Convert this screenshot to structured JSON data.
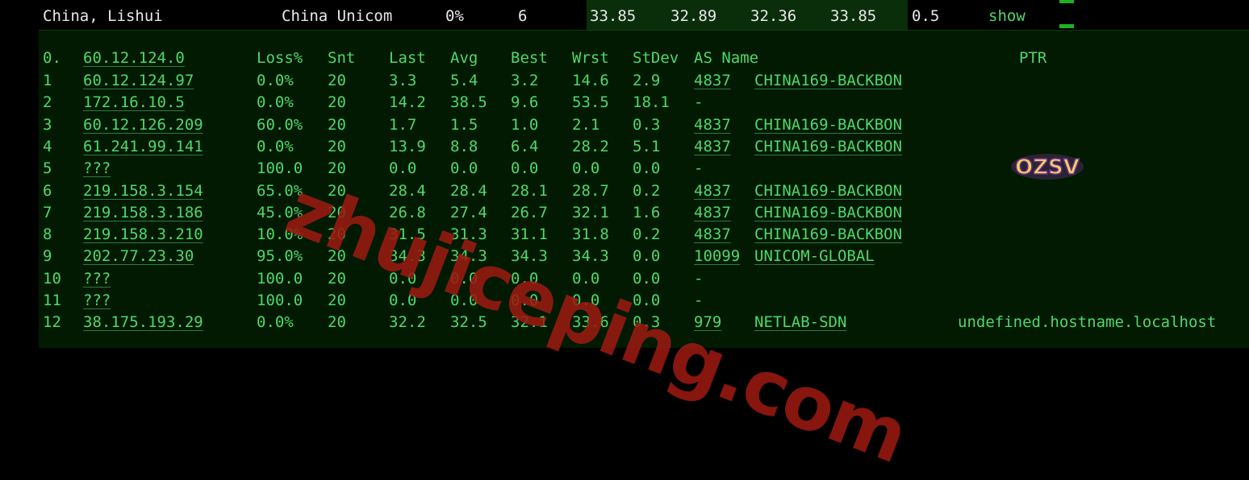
{
  "summary": {
    "location": "China, Lishui",
    "isp": "China Unicom",
    "loss": "0%",
    "count": "6",
    "last": "33.85",
    "avg": "32.89",
    "best": "32.36",
    "worst": "33.85",
    "stdev": "0.5",
    "show_link": "show"
  },
  "table": {
    "headers": {
      "hop": "0.",
      "host": "60.12.124.0",
      "loss": "Loss%",
      "snt": "Snt",
      "last": "Last",
      "avg": "Avg",
      "best": "Best",
      "wrst": "Wrst",
      "stdev": "StDev",
      "as": "AS Name",
      "ptr": "PTR"
    },
    "rows": [
      {
        "hop": "1",
        "host": "60.12.124.97",
        "loss": "0.0%",
        "snt": "20",
        "last": "3.3",
        "avg": "5.4",
        "best": "3.2",
        "wrst": "14.6",
        "stdev": "2.9",
        "asn": "4837",
        "asname": "CHINA169-BACKBON",
        "ptr": ""
      },
      {
        "hop": "2",
        "host": "172.16.10.5",
        "loss": "0.0%",
        "snt": "20",
        "last": "14.2",
        "avg": "38.5",
        "best": "9.6",
        "wrst": "53.5",
        "stdev": "18.1",
        "asn": "-",
        "asname": "",
        "ptr": ""
      },
      {
        "hop": "3",
        "host": "60.12.126.209",
        "loss": "60.0%",
        "snt": "20",
        "last": "1.7",
        "avg": "1.5",
        "best": "1.0",
        "wrst": "2.1",
        "stdev": "0.3",
        "asn": "4837",
        "asname": "CHINA169-BACKBON",
        "ptr": ""
      },
      {
        "hop": "4",
        "host": "61.241.99.141",
        "loss": "0.0%",
        "snt": "20",
        "last": "13.9",
        "avg": "8.8",
        "best": "6.4",
        "wrst": "28.2",
        "stdev": "5.1",
        "asn": "4837",
        "asname": "CHINA169-BACKBON",
        "ptr": ""
      },
      {
        "hop": "5",
        "host": "???",
        "loss": "100.0",
        "snt": "20",
        "last": "0.0",
        "avg": "0.0",
        "best": "0.0",
        "wrst": "0.0",
        "stdev": "0.0",
        "asn": "-",
        "asname": "",
        "ptr": ""
      },
      {
        "hop": "6",
        "host": "219.158.3.154",
        "loss": "65.0%",
        "snt": "20",
        "last": "28.4",
        "avg": "28.4",
        "best": "28.1",
        "wrst": "28.7",
        "stdev": "0.2",
        "asn": "4837",
        "asname": "CHINA169-BACKBON",
        "ptr": ""
      },
      {
        "hop": "7",
        "host": "219.158.3.186",
        "loss": "45.0%",
        "snt": "20",
        "last": "26.8",
        "avg": "27.4",
        "best": "26.7",
        "wrst": "32.1",
        "stdev": "1.6",
        "asn": "4837",
        "asname": "CHINA169-BACKBON",
        "ptr": ""
      },
      {
        "hop": "8",
        "host": "219.158.3.210",
        "loss": "10.0%",
        "snt": "20",
        "last": "31.5",
        "avg": "31.3",
        "best": "31.1",
        "wrst": "31.8",
        "stdev": "0.2",
        "asn": "4837",
        "asname": "CHINA169-BACKBON",
        "ptr": ""
      },
      {
        "hop": "9",
        "host": "202.77.23.30",
        "loss": "95.0%",
        "snt": "20",
        "last": "34.3",
        "avg": "34.3",
        "best": "34.3",
        "wrst": "34.3",
        "stdev": "0.0",
        "asn": "10099",
        "asname": "UNICOM-GLOBAL",
        "ptr": ""
      },
      {
        "hop": "10",
        "host": "???",
        "loss": "100.0",
        "snt": "20",
        "last": "0.0",
        "avg": "0.0",
        "best": "0.0",
        "wrst": "0.0",
        "stdev": "0.0",
        "asn": "-",
        "asname": "",
        "ptr": ""
      },
      {
        "hop": "11",
        "host": "???",
        "loss": "100.0",
        "snt": "20",
        "last": "0.0",
        "avg": "0.0",
        "best": "0.0",
        "wrst": "0.0",
        "stdev": "0.0",
        "asn": "-",
        "asname": "",
        "ptr": ""
      },
      {
        "hop": "12",
        "host": "38.175.193.29",
        "loss": "0.0%",
        "snt": "20",
        "last": "32.2",
        "avg": "32.5",
        "best": "32.1",
        "wrst": "33.6",
        "stdev": "0.3",
        "asn": "979",
        "asname": "NETLAB-SDN",
        "ptr": "undefined.hostname.localhost"
      }
    ]
  },
  "watermark": "zhujiceping.com",
  "logo": "OZSV",
  "colors": {
    "text_green": "#4fd86a",
    "panel_bg": "#011a01",
    "watermark": "#9a1a10"
  }
}
